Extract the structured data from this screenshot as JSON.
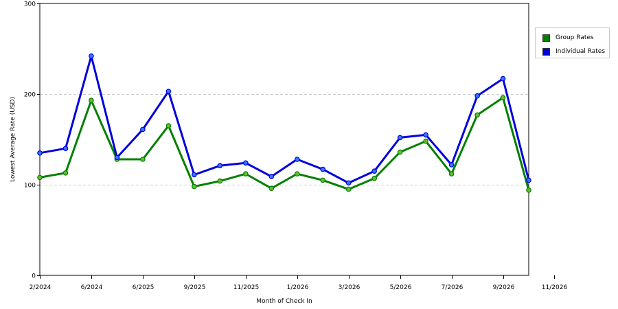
{
  "chart_data": {
    "type": "line",
    "xlabel": "Month of Check In",
    "ylabel": "Lowest Average Rate (USD)",
    "ylim": [
      0,
      300
    ],
    "y_ticks": [
      0,
      100,
      200,
      300
    ],
    "grid": "horizontal dashed",
    "legend_position": "top-right",
    "x_tick_labels": [
      "2/2024",
      "6/2024",
      "6/2025",
      "9/2025",
      "11/2025",
      "1/2026",
      "3/2026",
      "5/2026",
      "7/2026",
      "9/2026",
      "11/2026"
    ],
    "series": [
      {
        "name": "Group Rates",
        "color": "#008000",
        "marker_color": "#66bb33",
        "values": [
          108,
          113,
          193,
          128,
          128,
          165,
          98,
          104,
          112,
          96,
          112,
          105,
          95,
          107,
          136,
          148,
          112,
          177,
          196,
          94
        ]
      },
      {
        "name": "Individual Rates",
        "color": "#0000dd",
        "marker_color": "#3377ff",
        "values": [
          135,
          140,
          242,
          130,
          161,
          203,
          111,
          121,
          124,
          109,
          128,
          117,
          102,
          115,
          152,
          155,
          122,
          198,
          217,
          105
        ]
      }
    ]
  }
}
